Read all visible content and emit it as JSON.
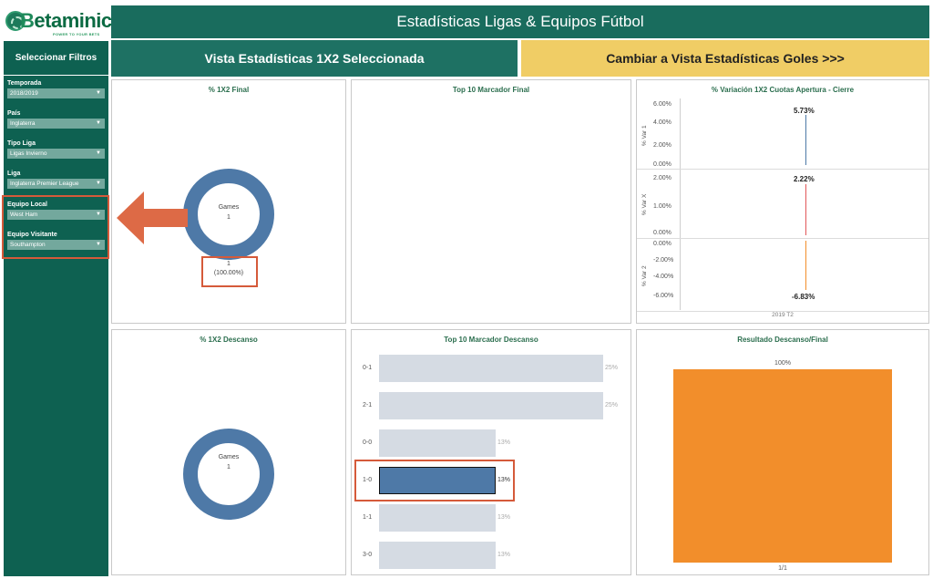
{
  "logo": {
    "brand_b": "B",
    "brand_rest": "etaminic",
    "tagline": "POWER TO YOUR BETS"
  },
  "header": {
    "title": "Estadísticas Ligas & Equipos Fútbol"
  },
  "sidebar": {
    "title": "Seleccionar Filtros",
    "filters": [
      {
        "label": "Temporada",
        "value": "2018/2019"
      },
      {
        "label": "País",
        "value": "Inglaterra"
      },
      {
        "label": "Tipo Liga",
        "value": "Ligas Invierno"
      },
      {
        "label": "Liga",
        "value": "Inglaterra Premier League"
      },
      {
        "label": "Equipo Local",
        "value": "West Ham"
      },
      {
        "label": "Equipo Visitante",
        "value": "Southampton"
      }
    ]
  },
  "views": {
    "active_label": "Vista Estadísticas 1X2 Seleccionada",
    "switch_label": "Cambiar a Vista Estadísticas Goles >>>"
  },
  "panels": {
    "pct_1x2_final": {
      "title": "% 1X2 Final",
      "center_label": "Games",
      "center_value": "1",
      "count": "1",
      "percent": "(100.00%)"
    },
    "top10_final": {
      "title": "Top 10 Marcador Final"
    },
    "variation": {
      "title": "% Variación 1X2 Cuotas Apertura - Cierre",
      "rows": [
        {
          "axis_label": "% Var 1",
          "ticks": [
            "6.00%",
            "4.00%",
            "2.00%",
            "0.00%"
          ],
          "value": "5.73%",
          "color": "#4e79a7"
        },
        {
          "axis_label": "% Var X",
          "ticks": [
            "2.00%",
            "1.00%",
            "0.00%"
          ],
          "value": "2.22%",
          "color": "#e15759"
        },
        {
          "axis_label": "% Var 2",
          "ticks": [
            "0.00%",
            "-2.00%",
            "-4.00%",
            "-6.00%"
          ],
          "value": "-6.83%",
          "color": "#f28e2b"
        }
      ],
      "x_label": "2019 T2"
    },
    "pct_1x2_descanso": {
      "title": "% 1X2 Descanso",
      "center_label": "Games",
      "center_value": "1"
    },
    "top10_descanso": {
      "title": "Top 10 Marcador Descanso",
      "chart_data": {
        "type": "bar",
        "categories": [
          "0-1",
          "2-1",
          "0-0",
          "1-0",
          "1-1",
          "3-0"
        ],
        "values": [
          25,
          25,
          13,
          13,
          13,
          13
        ],
        "labels": [
          "25%",
          "25%",
          "13%",
          "13%",
          "13%",
          "13%"
        ],
        "highlighted": "1-0",
        "color_default": "#d5dbe3",
        "color_highlight": "#4e79a7"
      }
    },
    "resultado": {
      "title": "Resultado Descanso/Final",
      "chart_data": {
        "type": "bar",
        "categories": [
          "1/1"
        ],
        "values": [
          100
        ],
        "labels": [
          "100%"
        ],
        "color": "#f28e2b"
      }
    }
  }
}
